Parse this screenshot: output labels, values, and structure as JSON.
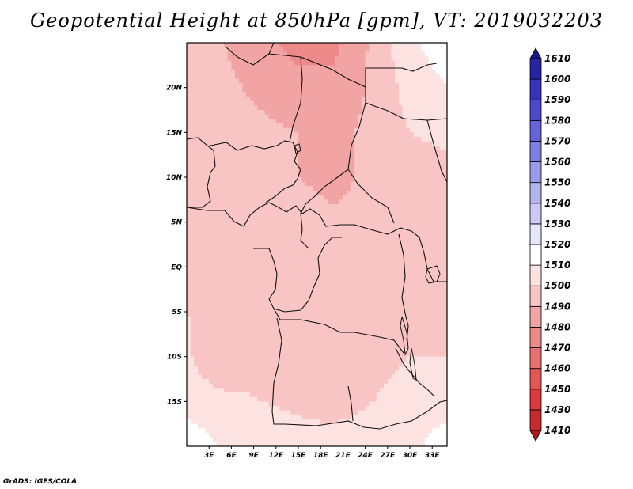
{
  "chart_data": {
    "type": "heatmap",
    "title": "Geopotential Height at 850hPa [gpm], VT: 2019032203",
    "variable": "Geopotential Height",
    "units": "gpm",
    "level": "850hPa",
    "valid_time": "2019032203",
    "lon_range": [
      0,
      35
    ],
    "lat_range": [
      -20,
      25
    ],
    "x_ticks": [
      {
        "value": 3,
        "label": "3E"
      },
      {
        "value": 6,
        "label": "6E"
      },
      {
        "value": 9,
        "label": "9E"
      },
      {
        "value": 12,
        "label": "12E"
      },
      {
        "value": 15,
        "label": "15E"
      },
      {
        "value": 18,
        "label": "18E"
      },
      {
        "value": 21,
        "label": "21E"
      },
      {
        "value": 24,
        "label": "24E"
      },
      {
        "value": 27,
        "label": "27E"
      },
      {
        "value": 30,
        "label": "30E"
      },
      {
        "value": 33,
        "label": "33E"
      }
    ],
    "y_ticks": [
      {
        "value": 20,
        "label": "20N"
      },
      {
        "value": 15,
        "label": "15N"
      },
      {
        "value": 10,
        "label": "10N"
      },
      {
        "value": 5,
        "label": "5N"
      },
      {
        "value": 0,
        "label": "EQ"
      },
      {
        "value": -5,
        "label": "5S"
      },
      {
        "value": -10,
        "label": "10S"
      },
      {
        "value": -15,
        "label": "15S"
      }
    ],
    "colorbar": {
      "levels": [
        1410,
        1430,
        1450,
        1460,
        1470,
        1480,
        1490,
        1500,
        1510,
        1520,
        1530,
        1540,
        1550,
        1560,
        1570,
        1580,
        1590,
        1600,
        1610
      ],
      "colors": [
        "#b2181b",
        "#c82b2b",
        "#dc3a3a",
        "#e35656",
        "#e86f6f",
        "#ed8989",
        "#f2a3a3",
        "#f8c4c4",
        "#fde2e2",
        "#ffffff",
        "#e6e6fa",
        "#c9c9f3",
        "#b3b3ef",
        "#9a9aec",
        "#7f7fe3",
        "#6464d8",
        "#4a4acb",
        "#3535bb",
        "#2424a5",
        "#161690"
      ]
    },
    "value_grid_lons": [
      0,
      5,
      10,
      15,
      20,
      25,
      30,
      35
    ],
    "value_grid_lats": [
      25,
      20,
      15,
      10,
      5,
      0,
      -5,
      -10,
      -15,
      -20
    ],
    "values": [
      [
        1496,
        1490,
        1484,
        1476,
        1478,
        1492,
        1508,
        1516
      ],
      [
        1498,
        1492,
        1488,
        1484,
        1482,
        1492,
        1504,
        1510
      ],
      [
        1498,
        1494,
        1492,
        1490,
        1486,
        1494,
        1500,
        1502
      ],
      [
        1498,
        1496,
        1492,
        1490,
        1488,
        1492,
        1496,
        1497
      ],
      [
        1499,
        1498,
        1496,
        1493,
        1491,
        1492,
        1494,
        1496
      ],
      [
        1499,
        1499,
        1497,
        1497,
        1496,
        1494,
        1492,
        1498
      ],
      [
        1500,
        1499,
        1499,
        1498,
        1498,
        1497,
        1497,
        1499
      ],
      [
        1501,
        1494,
        1498,
        1499,
        1498,
        1498,
        1500,
        1500
      ],
      [
        1503,
        1502,
        1500,
        1499,
        1498,
        1500,
        1502,
        1504
      ],
      [
        1520,
        1508,
        1504,
        1502,
        1502,
        1503,
        1506,
        1518
      ]
    ]
  },
  "credit": "GrADS: IGES/COLA"
}
